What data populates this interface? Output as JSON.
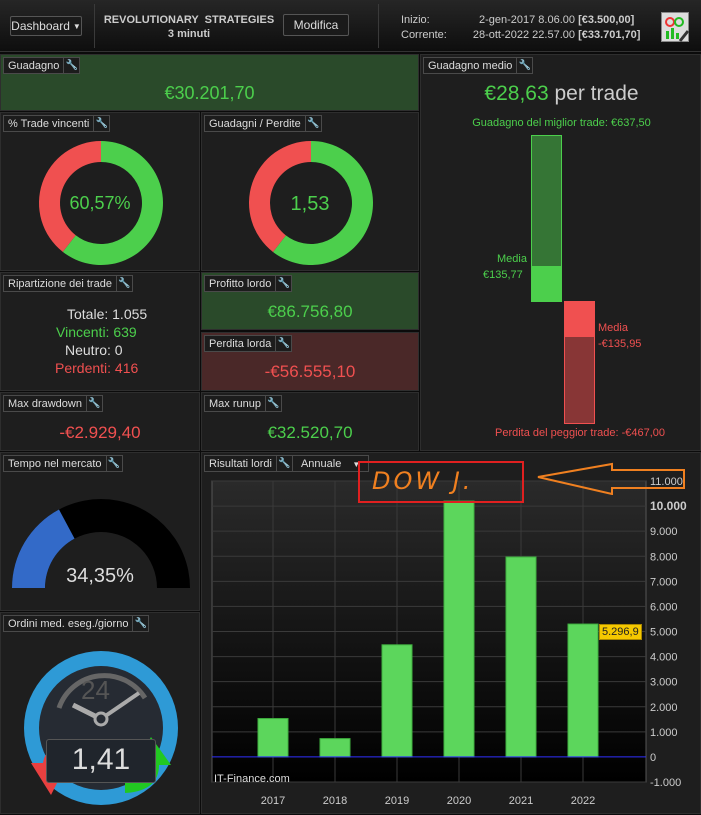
{
  "header": {
    "dashboard_label": "Dashboard",
    "strategy_name": "REVOLUTIONARY  STRATEGIES",
    "timeframe": "3 minuti",
    "modify_label": "Modifica",
    "start_label": "Inizio:",
    "start_date": "2-gen-2017 8.06.00",
    "start_value": "[€3.500,00]",
    "current_label": "Corrente:",
    "current_date": "28-ott-2022 22.57.00",
    "current_value": "[€33.701,70]"
  },
  "guadagno": {
    "title": "Guadagno",
    "value": "€30.201,70"
  },
  "trade_vincenti": {
    "title": "% Trade vincenti",
    "value": "60,57%",
    "fraction": 0.6057
  },
  "guadagni_perdite": {
    "title": "Guadagni / Perdite",
    "value": "1,53",
    "fraction": 0.605
  },
  "ripartizione": {
    "title": "Ripartizione dei trade",
    "totale": "Totale: 1.055",
    "vincenti": "Vincenti: 639",
    "neutro": "Neutro: 0",
    "perdenti": "Perdenti: 416"
  },
  "profitto_lordo": {
    "title": "Profitto lordo",
    "value": "€86.756,80"
  },
  "perdita_lorda": {
    "title": "Perdita lorda",
    "value": "-€56.555,10"
  },
  "max_drawdown": {
    "title": "Max drawdown",
    "value": "-€2.929,40"
  },
  "max_runup": {
    "title": "Max runup",
    "value": "€32.520,70"
  },
  "guadagno_medio": {
    "title": "Guadagno medio",
    "value": "€28,63",
    "per_trade": "per trade",
    "best": "Guadagno del miglior trade: €637,50",
    "media_label": "Media",
    "media_win": "€135,77",
    "media_loss": "-€135,95",
    "worst": "Perdita del peggior trade: -€467,00"
  },
  "tempo_mercato": {
    "title": "Tempo nel mercato",
    "value": "34,35%",
    "fraction": 0.3435
  },
  "ordini": {
    "title": "Ordini med. eseg./giorno",
    "value": "1,41",
    "dial_label": "24"
  },
  "risultati": {
    "title": "Risultati lordi",
    "period": "Annuale",
    "annotation": "DOW J.",
    "watermark": "IT-Finance.com",
    "last_value_label": "5.296,9"
  },
  "chart_data": {
    "type": "bar",
    "title": "Risultati lordi",
    "categories": [
      "2017",
      "2018",
      "2019",
      "2020",
      "2021",
      "2022"
    ],
    "values": [
      1530,
      730,
      4470,
      10200,
      7970,
      5296.9
    ],
    "ylim": [
      -1000,
      11000
    ],
    "yticks": [
      -1000,
      0,
      1000,
      2000,
      3000,
      4000,
      5000,
      6000,
      7000,
      8000,
      9000,
      10000,
      11000
    ],
    "ytick_labels": [
      "-1.000",
      "0",
      "1.000",
      "2.000",
      "3.000",
      "4.000",
      "5.000",
      "6.000",
      "7.000",
      "8.000",
      "9.000",
      "10.000",
      "11.000"
    ],
    "bar_color": "#5cd65c",
    "grid": true
  }
}
